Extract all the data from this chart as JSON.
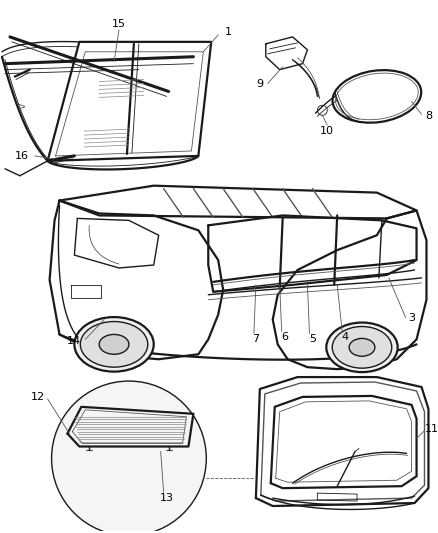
{
  "bg_color": "#ffffff",
  "line_color": "#1a1a1a",
  "label_color": "#000000",
  "fig_width": 4.38,
  "fig_height": 5.33,
  "dpi": 100,
  "gray1": "#555555",
  "gray2": "#888888",
  "gray3": "#aaaaaa",
  "gray_fill": "#e8e8e8",
  "lw_thin": 0.6,
  "lw_med": 1.0,
  "lw_thick": 1.6,
  "lw_xthick": 2.2
}
